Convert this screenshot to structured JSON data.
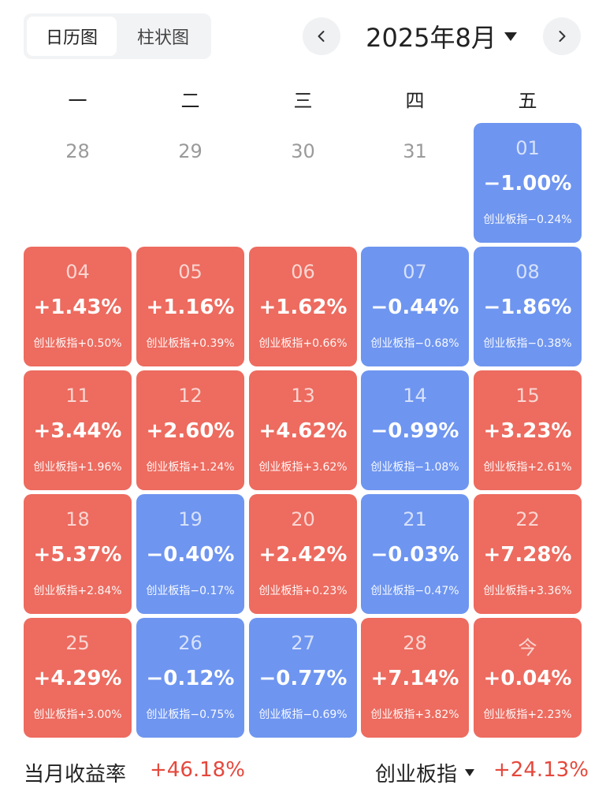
{
  "tabs": {
    "calendar": "日历图",
    "bar": "柱状图"
  },
  "month_label": "2025年8月",
  "icons": {
    "prev": "chevron-left-icon",
    "next": "chevron-right-icon",
    "month_dropdown": "caret-down-icon"
  },
  "weekdays": [
    "一",
    "二",
    "三",
    "四",
    "五"
  ],
  "colors": {
    "up": "#ed6b5f",
    "down": "#6e95f0",
    "footer_value": "#e5483c"
  },
  "cells": [
    {
      "day": "28",
      "empty": true
    },
    {
      "day": "29",
      "empty": true
    },
    {
      "day": "30",
      "empty": true
    },
    {
      "day": "31",
      "empty": true
    },
    {
      "day": "01",
      "pct": "−1.00%",
      "idx": "创业板指−0.24%",
      "color": "blue"
    },
    {
      "day": "04",
      "pct": "+1.43%",
      "idx": "创业板指+0.50%",
      "color": "red"
    },
    {
      "day": "05",
      "pct": "+1.16%",
      "idx": "创业板指+0.39%",
      "color": "red"
    },
    {
      "day": "06",
      "pct": "+1.62%",
      "idx": "创业板指+0.66%",
      "color": "red"
    },
    {
      "day": "07",
      "pct": "−0.44%",
      "idx": "创业板指−0.68%",
      "color": "blue"
    },
    {
      "day": "08",
      "pct": "−1.86%",
      "idx": "创业板指−0.38%",
      "color": "blue"
    },
    {
      "day": "11",
      "pct": "+3.44%",
      "idx": "创业板指+1.96%",
      "color": "red"
    },
    {
      "day": "12",
      "pct": "+2.60%",
      "idx": "创业板指+1.24%",
      "color": "red"
    },
    {
      "day": "13",
      "pct": "+4.62%",
      "idx": "创业板指+3.62%",
      "color": "red"
    },
    {
      "day": "14",
      "pct": "−0.99%",
      "idx": "创业板指−1.08%",
      "color": "blue"
    },
    {
      "day": "15",
      "pct": "+3.23%",
      "idx": "创业板指+2.61%",
      "color": "red"
    },
    {
      "day": "18",
      "pct": "+5.37%",
      "idx": "创业板指+2.84%",
      "color": "red"
    },
    {
      "day": "19",
      "pct": "−0.40%",
      "idx": "创业板指−0.17%",
      "color": "blue"
    },
    {
      "day": "20",
      "pct": "+2.42%",
      "idx": "创业板指+0.23%",
      "color": "red"
    },
    {
      "day": "21",
      "pct": "−0.03%",
      "idx": "创业板指−0.47%",
      "color": "blue"
    },
    {
      "day": "22",
      "pct": "+7.28%",
      "idx": "创业板指+3.36%",
      "color": "red"
    },
    {
      "day": "25",
      "pct": "+4.29%",
      "idx": "创业板指+3.00%",
      "color": "red"
    },
    {
      "day": "26",
      "pct": "−0.12%",
      "idx": "创业板指−0.75%",
      "color": "blue"
    },
    {
      "day": "27",
      "pct": "−0.77%",
      "idx": "创业板指−0.69%",
      "color": "blue"
    },
    {
      "day": "28",
      "pct": "+7.14%",
      "idx": "创业板指+3.82%",
      "color": "red"
    },
    {
      "day": "今",
      "pct": "+0.04%",
      "idx": "创业板指+2.23%",
      "color": "red"
    }
  ],
  "footer": {
    "month_return_label": "当月收益率",
    "month_return_value": "+46.18%",
    "index_label": "创业板指",
    "index_value": "+24.13%"
  }
}
